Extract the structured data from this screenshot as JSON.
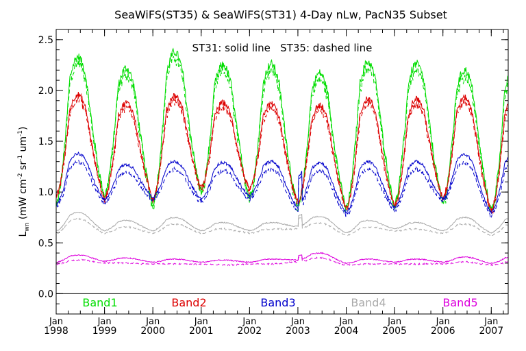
{
  "chart_data": {
    "type": "line",
    "title": "SeaWiFS(ST35) & SeaWiFS(ST31) 4-Day nLw, PacN35 Subset",
    "annotation": "ST31: solid line   ST35: dashed line",
    "ylabel": {
      "base": "L",
      "sub": "wn",
      "parts": [
        "(mW cm",
        "-2",
        " sr",
        "-1",
        " um",
        "-1",
        ")"
      ]
    },
    "xlim": [
      1998.0,
      2007.35
    ],
    "ylim": [
      -0.2,
      2.6
    ],
    "y_ticks": [
      "0.0",
      "0.5",
      "1.0",
      "1.5",
      "2.0",
      "2.5"
    ],
    "x_ticks": [
      {
        "month": "Jan",
        "year": "1998"
      },
      {
        "month": "Jan",
        "year": "1999"
      },
      {
        "month": "Jan",
        "year": "2000"
      },
      {
        "month": "Jan",
        "year": "2001"
      },
      {
        "month": "Jan",
        "year": "2002"
      },
      {
        "month": "Jan",
        "year": "2003"
      },
      {
        "month": "Jan",
        "year": "2004"
      },
      {
        "month": "Jan",
        "year": "2005"
      },
      {
        "month": "Jan",
        "year": "2006"
      },
      {
        "month": "Jan",
        "year": "2007"
      }
    ],
    "reference_line": 0.0,
    "sampling_days": 4,
    "series": [
      {
        "name": "Band1",
        "color": "#00dd00",
        "st31_summer_peaks": [
          2.33,
          2.22,
          2.38,
          2.25,
          2.26,
          2.17,
          2.28,
          2.26,
          2.2
        ],
        "winter_lows": [
          0.88,
          0.97,
          0.89,
          1.0,
          0.95,
          0.85,
          0.84,
          0.88,
          0.9,
          0.82
        ],
        "st35_offset": -0.04
      },
      {
        "name": "Band2",
        "color": "#dd0000",
        "st31_summer_peaks": [
          1.96,
          1.88,
          1.95,
          1.88,
          1.87,
          1.85,
          1.92,
          1.92,
          1.93
        ],
        "winter_lows": [
          0.97,
          0.94,
          0.94,
          1.04,
          1.02,
          0.9,
          0.84,
          0.86,
          0.95,
          0.82
        ],
        "st35_offset": -0.03
      },
      {
        "name": "Band3",
        "color": "#0000cc",
        "st31_summer_peaks": [
          1.38,
          1.27,
          1.3,
          1.29,
          1.3,
          1.29,
          1.3,
          1.3,
          1.37
        ],
        "winter_lows": [
          0.88,
          0.92,
          0.95,
          0.93,
          0.96,
          0.85,
          0.8,
          0.85,
          0.93,
          0.8
        ],
        "st35_offset": -0.05
      },
      {
        "name": "Band4",
        "color": "#aaaaaa",
        "st31_summer_peaks": [
          0.8,
          0.72,
          0.75,
          0.7,
          0.7,
          0.76,
          0.72,
          0.7,
          0.75
        ],
        "winter_lows": [
          0.62,
          0.62,
          0.62,
          0.62,
          0.62,
          0.66,
          0.6,
          0.64,
          0.62,
          0.6
        ],
        "st35_offset": -0.04
      },
      {
        "name": "Band5",
        "color": "#dd00dd",
        "st31_summer_peaks": [
          0.38,
          0.35,
          0.34,
          0.33,
          0.34,
          0.4,
          0.34,
          0.34,
          0.36
        ],
        "winter_lows": [
          0.31,
          0.32,
          0.31,
          0.31,
          0.31,
          0.33,
          0.3,
          0.31,
          0.31,
          0.3
        ],
        "st35_offset": -0.03
      }
    ]
  }
}
